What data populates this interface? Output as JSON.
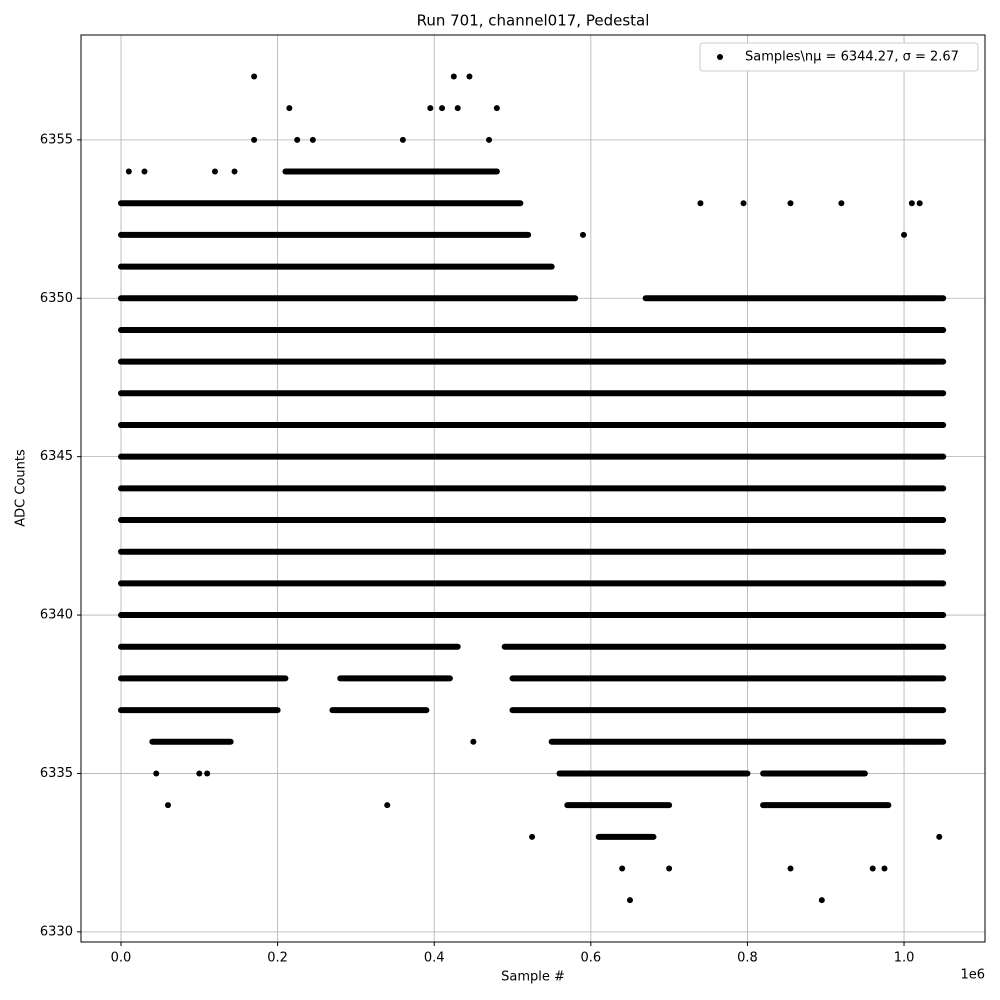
{
  "chart_data": {
    "type": "scatter",
    "title": "Run 701, channel017, Pedestal",
    "x_label": "Sample #",
    "y_label": "ADC Counts",
    "x_offset_label": "1e6",
    "series": [
      {
        "name": "Samples\\nμ = 6344.27, σ = 2.67",
        "color": "#000000",
        "runs": [
          [
            6349,
            0,
            1050000
          ],
          [
            6348,
            0,
            1050000
          ],
          [
            6347,
            0,
            1050000
          ],
          [
            6346,
            0,
            1050000
          ],
          [
            6345,
            0,
            1050000
          ],
          [
            6344,
            0,
            1050000
          ],
          [
            6343,
            0,
            1050000
          ],
          [
            6342,
            0,
            1050000
          ],
          [
            6341,
            0,
            1050000
          ],
          [
            6340,
            0,
            1050000
          ],
          [
            6350,
            0,
            580000
          ],
          [
            6350,
            670000,
            1050000
          ],
          [
            6351,
            0,
            550000
          ],
          [
            6352,
            0,
            520000
          ],
          [
            6353,
            0,
            510000
          ],
          [
            6354,
            210000,
            480000
          ],
          [
            6339,
            0,
            430000
          ],
          [
            6339,
            490000,
            1050000
          ],
          [
            6338,
            0,
            210000
          ],
          [
            6338,
            280000,
            420000
          ],
          [
            6338,
            500000,
            1050000
          ],
          [
            6337,
            0,
            200000
          ],
          [
            6337,
            270000,
            390000
          ],
          [
            6337,
            500000,
            1050000
          ],
          [
            6336,
            550000,
            1050000
          ],
          [
            6336,
            40000,
            140000
          ],
          [
            6335,
            560000,
            800000
          ],
          [
            6335,
            820000,
            950000
          ],
          [
            6334,
            570000,
            700000
          ],
          [
            6334,
            820000,
            980000
          ],
          [
            6333,
            610000,
            680000
          ]
        ],
        "x": [
          170000,
          425000,
          445000,
          215000,
          170000,
          395000,
          410000,
          430000,
          480000,
          470000,
          360000,
          225000,
          245000,
          10000,
          30000,
          120000,
          145000,
          740000,
          795000,
          855000,
          920000,
          1010000,
          1020000,
          590000,
          1000000,
          45000,
          100000,
          110000,
          60000,
          340000,
          450000,
          525000,
          640000,
          650000,
          855000,
          895000,
          960000,
          975000,
          1045000,
          700000
        ],
        "y": [
          6357,
          6357,
          6357,
          6356,
          6355,
          6356,
          6356,
          6356,
          6356,
          6355,
          6355,
          6355,
          6355,
          6354,
          6354,
          6354,
          6354,
          6353,
          6353,
          6353,
          6353,
          6353,
          6353,
          6352,
          6352,
          6335,
          6335,
          6335,
          6334,
          6334,
          6336,
          6333,
          6332,
          6331,
          6332,
          6331,
          6332,
          6332,
          6333,
          6332
        ]
      }
    ],
    "xlim": [
      -51100,
      1103400
    ],
    "ylim": [
      6329.68,
      6358.31
    ],
    "xticks": [
      {
        "value": 0,
        "label": "0.0"
      },
      {
        "value": 200000,
        "label": "0.2"
      },
      {
        "value": 400000,
        "label": "0.4"
      },
      {
        "value": 600000,
        "label": "0.6"
      },
      {
        "value": 800000,
        "label": "0.8"
      },
      {
        "value": 1000000,
        "label": "1.0"
      }
    ],
    "yticks": [
      6330,
      6335,
      6340,
      6345,
      6350,
      6355
    ],
    "grid": true,
    "legend": "upper right"
  }
}
